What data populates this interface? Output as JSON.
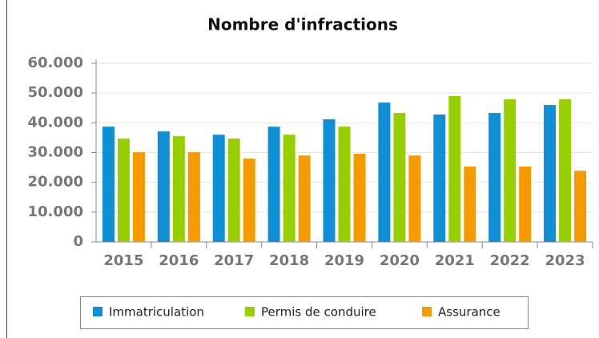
{
  "chart_data": {
    "type": "bar",
    "title": "Nombre d'infractions",
    "categories": [
      "2015",
      "2016",
      "2017",
      "2018",
      "2019",
      "2020",
      "2021",
      "2022",
      "2023"
    ],
    "series": [
      {
        "name": "Immatriculation",
        "color": "#0e8fd6",
        "values": [
          38700,
          37100,
          36000,
          38700,
          41200,
          46800,
          42800,
          43300,
          46000
        ]
      },
      {
        "name": "Permis de conduire",
        "color": "#97cf00",
        "values": [
          34700,
          35500,
          34700,
          36000,
          38700,
          43300,
          49000,
          47900,
          47900
        ]
      },
      {
        "name": "Assurance",
        "color": "#f59b00",
        "values": [
          30100,
          30100,
          28000,
          29000,
          29600,
          29000,
          25300,
          25300,
          23900
        ]
      }
    ],
    "ylim": [
      0,
      60000
    ],
    "yticks": [
      0,
      {
        "value": 10000,
        "label": "10.000"
      },
      {
        "value": 20000,
        "label": "20.000"
      },
      {
        "value": 30000,
        "label": "30.000"
      },
      {
        "value": 40000,
        "label": "40.000"
      },
      {
        "value": 50000,
        "label": "50.000"
      },
      {
        "value": 60000,
        "label": "60.000"
      }
    ],
    "grid": true
  }
}
